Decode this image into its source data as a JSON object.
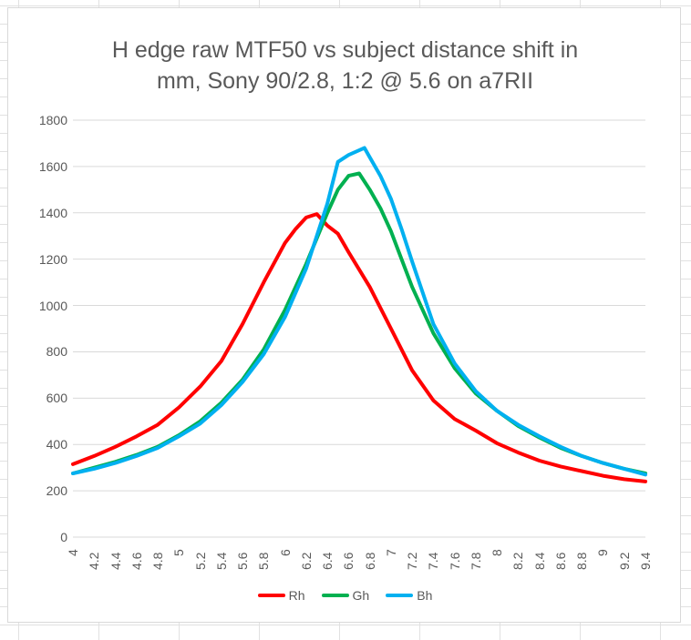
{
  "chart_data": {
    "type": "line",
    "title_lines": [
      "H edge raw MTF50 vs subject distance shift in",
      "mm, Sony 90/2.8, 1:2 @ 5.6 on a7RII"
    ],
    "title": "H edge raw MTF50 vs subject distance shift in mm, Sony 90/2.8, 1:2 @ 5.6 on a7RII",
    "xlabel": "",
    "ylabel": "",
    "ylim": [
      0,
      1800
    ],
    "xlim": [
      4,
      9.4
    ],
    "yticks": [
      "0",
      "200",
      "400",
      "600",
      "800",
      "1000",
      "1200",
      "1400",
      "1600",
      "1800"
    ],
    "xticks": [
      "4",
      "4.2",
      "4.4",
      "4.6",
      "4.8",
      "5",
      "5.2",
      "5.4",
      "5.6",
      "5.8",
      "6",
      "6.2",
      "6.4",
      "6.6",
      "6.8",
      "7",
      "7.2",
      "7.4",
      "7.6",
      "7.8",
      "8",
      "8.2",
      "8.4",
      "8.6",
      "8.8",
      "9",
      "9.2",
      "9.4"
    ],
    "grid": true,
    "legend_position": "bottom",
    "series": [
      {
        "name": "Rh",
        "color": "#ff0000",
        "x": [
          4.0,
          4.2,
          4.4,
          4.6,
          4.8,
          5.0,
          5.2,
          5.4,
          5.6,
          5.8,
          6.0,
          6.1,
          6.2,
          6.3,
          6.4,
          6.5,
          6.6,
          6.8,
          7.0,
          7.2,
          7.4,
          7.6,
          7.8,
          8.0,
          8.2,
          8.4,
          8.6,
          8.8,
          9.0,
          9.2,
          9.4
        ],
        "y": [
          315,
          350,
          390,
          435,
          485,
          560,
          650,
          760,
          920,
          1100,
          1270,
          1330,
          1380,
          1395,
          1345,
          1310,
          1230,
          1080,
          900,
          720,
          590,
          510,
          460,
          405,
          365,
          330,
          305,
          285,
          265,
          250,
          240
        ]
      },
      {
        "name": "Gh",
        "color": "#00b050",
        "x": [
          4.0,
          4.2,
          4.4,
          4.6,
          4.8,
          5.0,
          5.2,
          5.4,
          5.6,
          5.8,
          6.0,
          6.2,
          6.4,
          6.5,
          6.6,
          6.7,
          6.8,
          6.9,
          7.0,
          7.1,
          7.2,
          7.4,
          7.6,
          7.8,
          8.0,
          8.2,
          8.4,
          8.6,
          8.8,
          9.0,
          9.2,
          9.4
        ],
        "y": [
          275,
          300,
          325,
          355,
          390,
          440,
          500,
          580,
          680,
          810,
          980,
          1180,
          1400,
          1500,
          1560,
          1570,
          1500,
          1420,
          1320,
          1200,
          1080,
          880,
          730,
          620,
          545,
          480,
          430,
          385,
          350,
          320,
          295,
          275
        ]
      },
      {
        "name": "Bh",
        "color": "#00b0f0",
        "x": [
          4.0,
          4.2,
          4.4,
          4.6,
          4.8,
          5.0,
          5.2,
          5.4,
          5.6,
          5.8,
          6.0,
          6.2,
          6.4,
          6.5,
          6.6,
          6.7,
          6.75,
          6.8,
          6.9,
          7.0,
          7.1,
          7.2,
          7.4,
          7.6,
          7.8,
          8.0,
          8.2,
          8.4,
          8.6,
          8.8,
          9.0,
          9.2,
          9.4
        ],
        "y": [
          275,
          295,
          320,
          350,
          385,
          435,
          490,
          570,
          670,
          790,
          950,
          1160,
          1440,
          1620,
          1650,
          1670,
          1680,
          1640,
          1560,
          1460,
          1330,
          1190,
          920,
          750,
          630,
          545,
          485,
          435,
          390,
          350,
          320,
          295,
          270
        ]
      }
    ]
  }
}
